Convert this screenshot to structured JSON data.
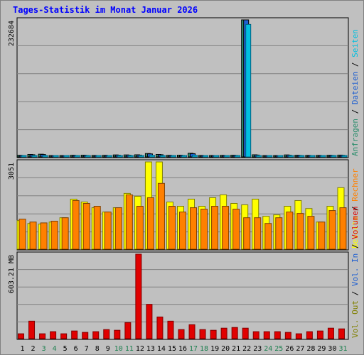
{
  "chart_data": {
    "title": "Tages-Statistik im Monat Januar 2026",
    "categories": [
      "1",
      "2",
      "3",
      "4",
      "5",
      "6",
      "7",
      "8",
      "9",
      "10",
      "11",
      "12",
      "13",
      "14",
      "15",
      "16",
      "17",
      "18",
      "19",
      "20",
      "21",
      "22",
      "23",
      "24",
      "25",
      "26",
      "27",
      "28",
      "29",
      "30",
      "31"
    ],
    "weekend_days": [
      "3",
      "4",
      "10",
      "11",
      "17",
      "18",
      "24",
      "25",
      "31"
    ],
    "colors": {
      "title": "#0000ff",
      "weekday_label": "#000000",
      "weekend_label": "#1e8050",
      "anfragen": "#2f8f6f",
      "dateien": "#1f5fd0",
      "seiten": "#00c0e0",
      "besuche": "#ffff00",
      "rechner": "#ff8000",
      "vol_in": "#1f5fd0",
      "vol_out": "#808000",
      "volumen": "#e00000"
    },
    "panels": [
      {
        "type": "bar",
        "max_label": "232684",
        "ylim": [
          0,
          232684
        ],
        "series": [
          {
            "name": "Anfragen",
            "values": [
              2800,
              4200,
              4600,
              2400,
              2200,
              2900,
              3000,
              2600,
              2800,
              3400,
              3400,
              3600,
              5800,
              4200,
              2800,
              3000,
              6200,
              2600,
              2500,
              2700,
              2900,
              232684,
              3600,
              2400,
              2200,
              3400,
              2900,
              2700,
              2700,
              2900,
              3100
            ]
          },
          {
            "name": "Dateien",
            "values": [
              2500,
              3700,
              4100,
              2100,
              1900,
              2500,
              2600,
              2200,
              2400,
              3000,
              3000,
              3100,
              5200,
              3700,
              2500,
              2600,
              5500,
              2300,
              2200,
              2400,
              2600,
              232684,
              3200,
              2100,
              1900,
              3000,
              2600,
              2400,
              2400,
              2600,
              2800
            ]
          },
          {
            "name": "Seiten",
            "values": [
              1500,
              2000,
              2200,
              1300,
              1200,
              1500,
              1500,
              1300,
              1400,
              1700,
              1800,
              1800,
              2800,
              2000,
              1400,
              1500,
              2800,
              1400,
              1300,
              1500,
              1600,
              225000,
              1800,
              1300,
              1100,
              1700,
              1500,
              1400,
              1400,
              1500,
              1600
            ]
          }
        ]
      },
      {
        "type": "bar",
        "max_label": "3051",
        "ylim": [
          0,
          3051
        ],
        "series": [
          {
            "name": "Besuche",
            "values": [
              1000,
              900,
              880,
              950,
              1100,
              1750,
              1650,
              1450,
              1300,
              1450,
              1950,
              1850,
              3050,
              3050,
              1650,
              1500,
              1750,
              1500,
              1800,
              1900,
              1600,
              1550,
              1750,
              1150,
              1200,
              1500,
              1700,
              1420,
              950,
              1500,
              2150
            ]
          },
          {
            "name": "Rechner",
            "values": [
              1050,
              950,
              920,
              980,
              1100,
              1700,
              1600,
              1500,
              1300,
              1450,
              1900,
              1500,
              1800,
              2300,
              1500,
              1300,
              1450,
              1400,
              1500,
              1500,
              1400,
              1100,
              1100,
              900,
              1100,
              1300,
              1250,
              1150,
              950,
              1350,
              1450
            ]
          }
        ]
      },
      {
        "type": "bar",
        "max_label": "603.21 MB",
        "ylim": [
          0,
          603.21
        ],
        "series": [
          {
            "name": "Volumen",
            "values": [
              35,
              125,
              35,
              50,
              35,
              55,
              45,
              50,
              65,
              60,
              115,
              603.21,
              245,
              155,
              125,
              65,
              100,
              65,
              60,
              75,
              80,
              75,
              50,
              50,
              50,
              45,
              35,
              50,
              55,
              75,
              70
            ]
          },
          {
            "name": "Vol. Out",
            "values": [
              0,
              0,
              0,
              0,
              0,
              0,
              0,
              0,
              0,
              0,
              0,
              0,
              0,
              0,
              0,
              0,
              0,
              0,
              0,
              0,
              0,
              0,
              0,
              0,
              0,
              0,
              0,
              0,
              0,
              0,
              0
            ]
          },
          {
            "name": "Vol. In",
            "values": [
              0,
              0,
              0,
              0,
              0,
              0,
              0,
              0,
              0,
              0,
              0,
              0,
              0,
              0,
              0,
              0,
              0,
              0,
              0,
              0,
              0,
              0,
              0,
              0,
              0,
              0,
              0,
              0,
              0,
              0,
              0
            ]
          }
        ]
      }
    ],
    "right_legends": [
      {
        "panel": 0,
        "items": [
          [
            "Anfragen",
            "anfragen"
          ],
          [
            "Dateien",
            "dateien"
          ],
          [
            "Seiten",
            "seiten"
          ]
        ]
      },
      {
        "panel": 1,
        "items": [
          [
            "Besuche",
            "besuche"
          ],
          [
            "Rechner",
            "rechner"
          ]
        ]
      },
      {
        "panel": 2,
        "items": [
          [
            "Vol. Out",
            "vol_out"
          ],
          [
            "Vol. In",
            "vol_in"
          ],
          [
            "Volumen",
            "volumen"
          ]
        ]
      }
    ],
    "legend_separator": " / "
  }
}
